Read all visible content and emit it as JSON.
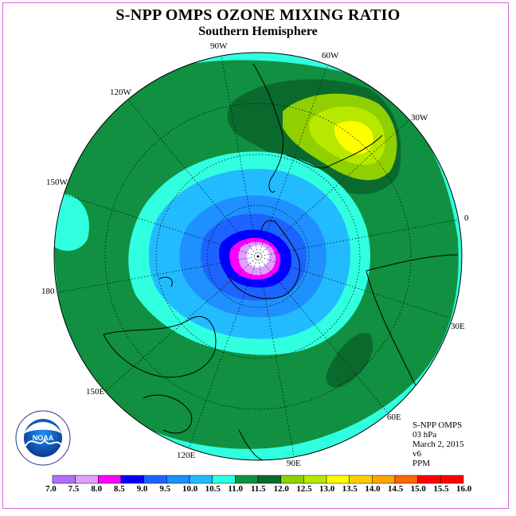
{
  "title": "S-NPP OMPS OZONE MIXING RATIO",
  "subtitle": "Southern Hemisphere",
  "longitude_labels": [
    {
      "text": "90W"
    },
    {
      "text": "60W"
    },
    {
      "text": "120W"
    },
    {
      "text": "30W"
    },
    {
      "text": "150W"
    },
    {
      "text": "0"
    },
    {
      "text": "180"
    },
    {
      "text": "30E"
    },
    {
      "text": "150E"
    },
    {
      "text": "60E"
    },
    {
      "text": "120E"
    },
    {
      "text": "90E"
    }
  ],
  "info": {
    "instrument": "S-NPP OMPS",
    "level": "03 hPa",
    "date": "March 2, 2015",
    "version": "v6",
    "units": "PPM"
  },
  "colorbar": {
    "ticks": [
      "7.0",
      "7.5",
      "8.0",
      "8.5",
      "9.0",
      "9.5",
      "10.0",
      "10.5",
      "11.0",
      "11.5",
      "12.0",
      "12.5",
      "13.0",
      "13.5",
      "14.0",
      "14.5",
      "15.0",
      "15.5",
      "16.0"
    ],
    "colors": [
      "#b070ff",
      "#e0a0ff",
      "#ff00ff",
      "#0000ff",
      "#1d63ff",
      "#1e90ff",
      "#22bbff",
      "#30ffe0",
      "#109040",
      "#0a6a2e",
      "#90d000",
      "#b8e800",
      "#ffff00",
      "#ffd000",
      "#ffa500",
      "#ff6600",
      "#ff0000",
      "#ff0000",
      "#8b5a2b"
    ]
  },
  "logo": {
    "text": "NOAA"
  }
}
